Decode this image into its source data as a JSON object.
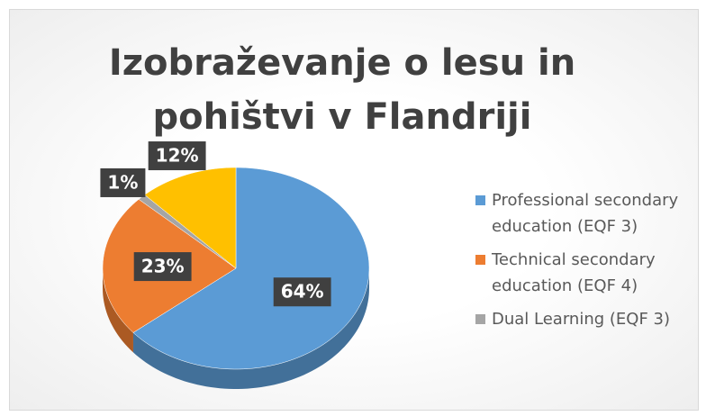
{
  "chart_data": {
    "type": "pie",
    "title": "Izobraževanje o lesu in pohištvi v Flandriji",
    "categories": [
      "Professional secondary education (EQF 3)",
      "Technical secondary education (EQF 4)",
      "Dual Learning (EQF 3)",
      null
    ],
    "values": [
      64,
      23,
      1,
      12
    ],
    "value_labels": [
      "64%",
      "23%",
      "1%",
      "12%"
    ],
    "colors": [
      "#5b9bd5",
      "#ed7d31",
      "#a5a5a5",
      "#ffc000"
    ],
    "legend": "right"
  }
}
